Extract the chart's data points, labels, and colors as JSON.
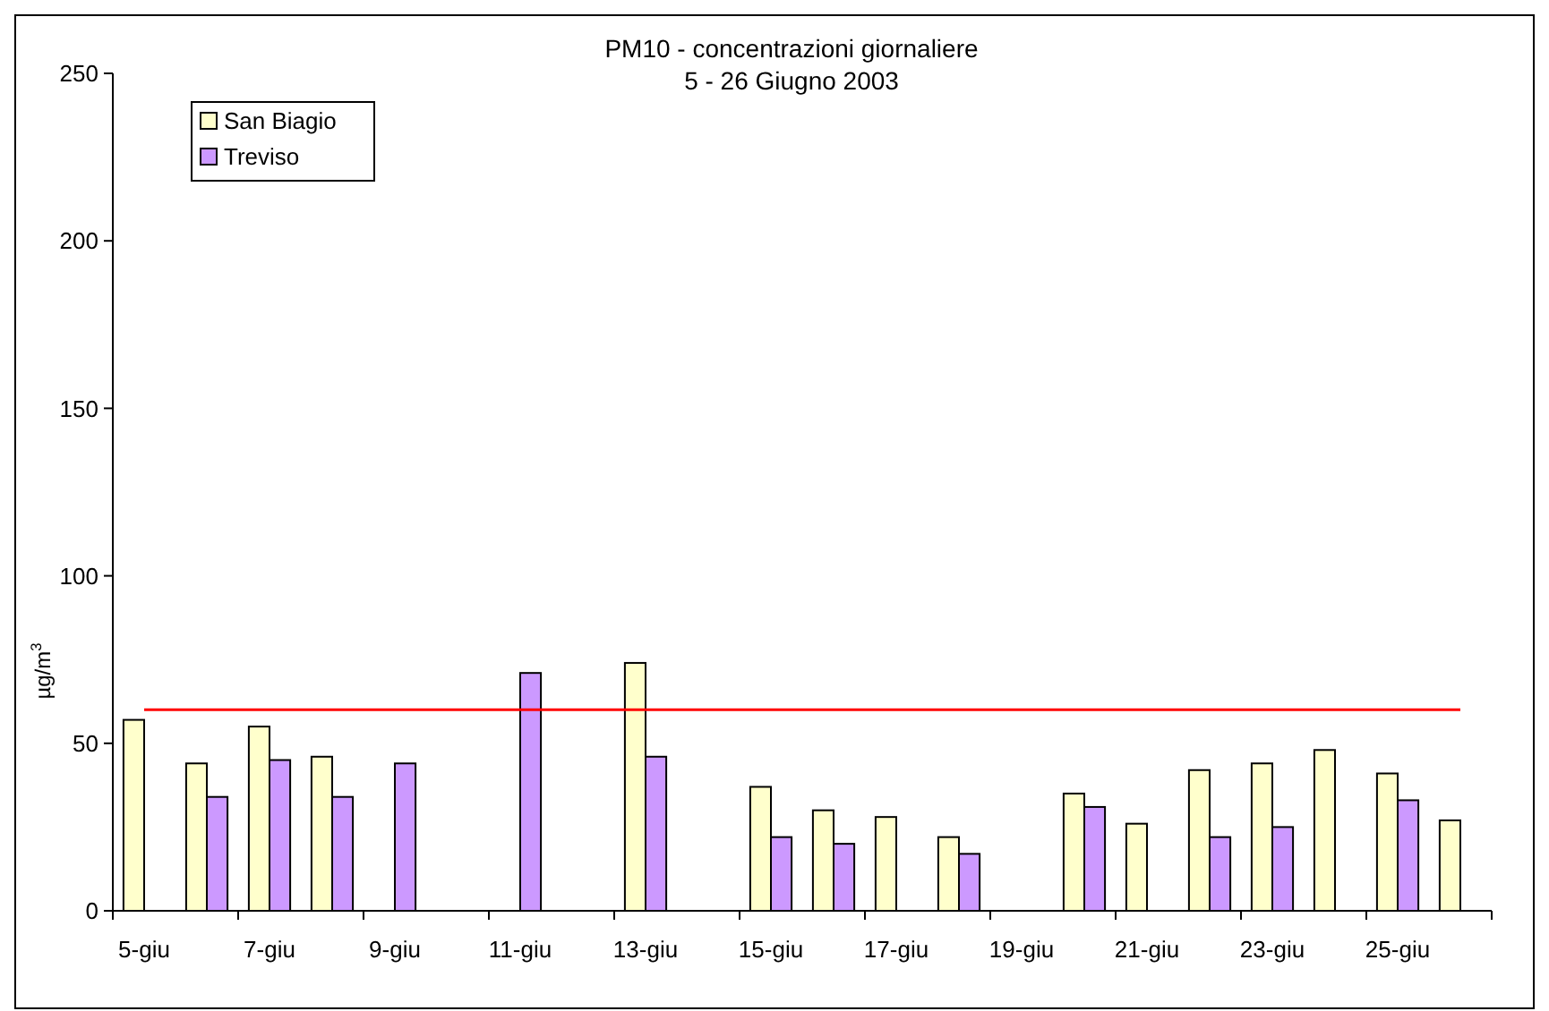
{
  "chart_data": {
    "type": "bar",
    "title": "PM10 - concentrazioni giornaliere",
    "subtitle": "5 - 26 Giugno 2003",
    "ylabel": "µg/m$^{3}$",
    "categories": [
      "5-giu",
      null,
      "7-giu",
      null,
      "9-giu",
      null,
      "11-giu",
      null,
      "13-giu",
      null,
      "15-giu",
      null,
      "17-giu",
      null,
      "19-giu",
      null,
      "21-giu",
      null,
      "23-giu",
      null,
      "25-giu",
      null
    ],
    "series": [
      {
        "name": "San Biagio",
        "color": "#ffffcc",
        "values": [
          57,
          44,
          55,
          46,
          null,
          null,
          null,
          null,
          74,
          null,
          37,
          30,
          28,
          22,
          null,
          35,
          26,
          42,
          44,
          48,
          41,
          27
        ]
      },
      {
        "name": "Treviso",
        "color": "#cc99ff",
        "values": [
          null,
          34,
          45,
          34,
          44,
          null,
          71,
          null,
          46,
          null,
          22,
          20,
          null,
          17,
          null,
          31,
          null,
          22,
          25,
          null,
          33,
          null
        ]
      }
    ],
    "ylim": [
      0,
      250
    ],
    "yticks": [
      0,
      50,
      100,
      150,
      200,
      250
    ],
    "grid": false,
    "legend": "top left",
    "ref_lines": [
      {
        "axis": "y",
        "value": 60,
        "color": "#ff0000"
      }
    ]
  }
}
